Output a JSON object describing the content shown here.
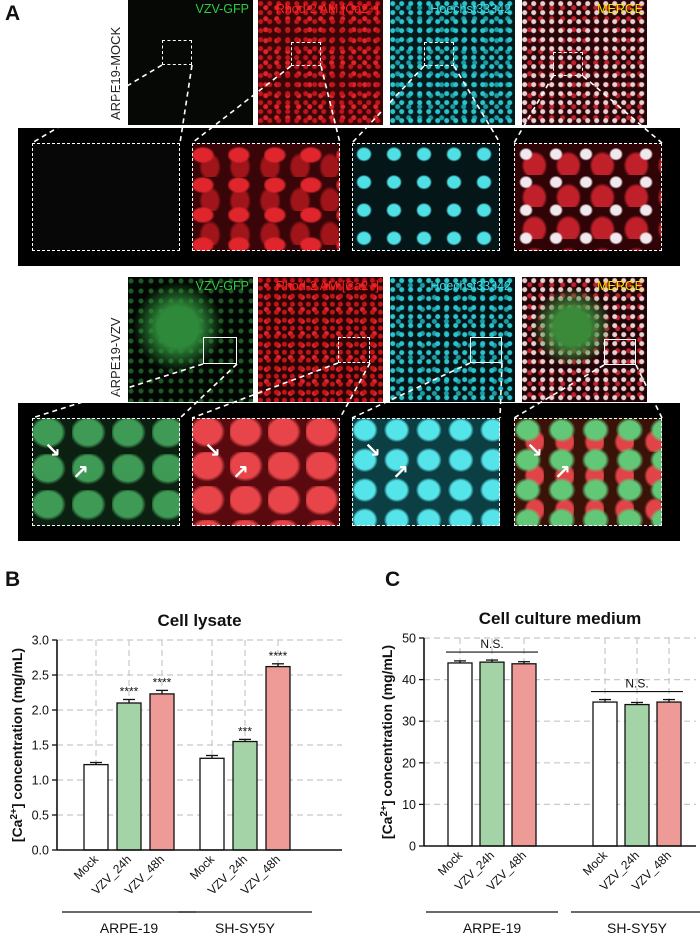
{
  "panel_a": {
    "letter": "A",
    "rows": [
      {
        "side_label": "ARPE19-MOCK",
        "tiles": [
          {
            "label": "VZV-GFP",
            "color": "#2ecc40",
            "bg": "#050805"
          },
          {
            "label": "Rhod-2 AM [Ca2+]",
            "color": "#ff2020",
            "bg": "radial-gradient(circle at 30% 40%, #c0161b 0 2px, transparent 3px) 0 0/9px 9px, radial-gradient(circle at 70% 70%, #e0252a 0 2px, transparent 3px) 0 0/11px 11px, #3a0507"
          },
          {
            "label": "Hoechst33342",
            "color": "#40d8e0",
            "bg": "radial-gradient(circle at 30% 40%, #2cc4cc 0 2px, transparent 3px) 0 0/9px 9px, radial-gradient(circle at 70% 70%, #1d9aa3 0 2px, transparent 3px) 0 0/11px 11px, #03191b"
          },
          {
            "label": "MERGE",
            "color": "#f5e600",
            "bg": "radial-gradient(circle at 30% 40%, #e8d0d4 0 2px, transparent 3px) 0 0/9px 9px, radial-gradient(circle at 70% 70%, #c2202a 0 2px, transparent 3px) 0 0/11px 11px, #2a0507"
          }
        ]
      },
      {
        "side_label": "ARPE19-VZV",
        "tiles": [
          {
            "label": "VZV-GFP",
            "color": "#2ecc40",
            "bg": "radial-gradient(ellipse at 40% 40%, #2e8a3a 0 20px, transparent 45px), radial-gradient(circle at 30% 40%, #1e5a24 0 2px, transparent 3px) 0 0/10px 10px, #030703"
          },
          {
            "label": "Rhod-2 AM [Ca2+]",
            "color": "#ff2020",
            "bg": "radial-gradient(circle at 30% 40%, #c0161b 0 2px, transparent 3px) 0 0/8px 8px, radial-gradient(circle at 70% 70%, #e0252a 0 2px, transparent 3px) 0 0/12px 12px, #2a0305"
          },
          {
            "label": "Hoechst33342",
            "color": "#40d8e0",
            "bg": "radial-gradient(circle at 30% 40%, #2cc4cc 0 2px, transparent 3px) 0 0/9px 9px, radial-gradient(circle at 70% 70%, #1d9aa3 0 2px, transparent 3px) 0 0/12px 12px, #021416"
          },
          {
            "label": "MERGE",
            "color": "#f5e600",
            "bg": "radial-gradient(ellipse at 40% 40%, #3a8a3a 0 18px, transparent 40px), radial-gradient(circle at 30% 40%, #e8d0d4 0 2px, transparent 3px) 0 0/9px 9px, radial-gradient(circle at 70% 70%, #c2202a 0 2px, transparent 3px) 0 0/11px 11px, #220406"
          }
        ]
      }
    ],
    "zoom_rows": [
      [
        "#070707",
        "radial-gradient(ellipse at 30% 40%, #e0262c 0 9px, transparent 12px) 0 0/36px 30px, radial-gradient(ellipse at 60% 70%, #a0151a 0 8px, transparent 11px) 0 0/30px 34px, #3a0508",
        "radial-gradient(ellipse at 40% 40%, #4fe0e6 0 6px, transparent 8px) 0 0/30px 28px, #041618",
        "radial-gradient(ellipse at 40% 40%, #f0e8ec 0 5px, transparent 7px) 0 0/30px 28px, radial-gradient(ellipse at 60% 70%, #c0202a 0 10px, transparent 13px) 0 0/34px 32px, #300407"
      ],
      [
        "radial-gradient(ellipse at 40% 40%, #3f9a55 0 14px, transparent 18px) 0 0/40px 36px, #0b2010",
        "radial-gradient(ellipse at 40% 40%, #e8454a 0 14px, transparent 18px) 0 0/38px 34px, #5a0a0e",
        "radial-gradient(ellipse at 40% 40%, #54e4ea 0 10px, transparent 13px) 0 0/32px 30px, #0c3f44",
        "radial-gradient(ellipse at 40% 40%, #62c878 0 10px, transparent 14px) 0 0/34px 30px, radial-gradient(ellipse at 70% 70%, #e04448 0 8px, transparent 11px) 0 0/30px 34px, #3a1208"
      ]
    ]
  },
  "chart_data": [
    {
      "panel_letter": "B",
      "type": "bar",
      "title": "Cell lysate",
      "ylabel": "[Ca2+] concentration (mg/mL)",
      "ylabel_main": "[Ca",
      "ylabel_sup": "2+",
      "ylabel_rest": "] concentration (mg/mL)",
      "ylim": [
        0,
        3.0
      ],
      "yticks": [
        "0.0",
        "0.5",
        "1.0",
        "1.5",
        "2.0",
        "2.5",
        "3.0"
      ],
      "grid": true,
      "groups": [
        {
          "name": "ARPE-19",
          "bars": [
            {
              "label": "Mock",
              "value": 1.22,
              "error": 0.03,
              "sig": "",
              "color": "#ffffff"
            },
            {
              "label": "VZV_24h",
              "value": 2.1,
              "error": 0.05,
              "sig": "****",
              "color": "#a3d3a6"
            },
            {
              "label": "VZV_48h",
              "value": 2.23,
              "error": 0.05,
              "sig": "****",
              "color": "#ee9a96"
            }
          ]
        },
        {
          "name": "SH-SY5Y",
          "bars": [
            {
              "label": "Mock",
              "value": 1.31,
              "error": 0.04,
              "sig": "",
              "color": "#ffffff"
            },
            {
              "label": "VZV_24h",
              "value": 1.55,
              "error": 0.03,
              "sig": "***",
              "color": "#a3d3a6"
            },
            {
              "label": "VZV_48h",
              "value": 2.62,
              "error": 0.04,
              "sig": "****",
              "color": "#ee9a96"
            }
          ]
        }
      ]
    },
    {
      "panel_letter": "C",
      "type": "bar",
      "title": "Cell culture medium",
      "ylabel": "[Ca2+] concentration (mg/mL)",
      "ylabel_main": "[Ca",
      "ylabel_sup": "2+",
      "ylabel_rest": "] concentration (mg/mL)",
      "ylim": [
        0,
        50
      ],
      "yticks": [
        "0",
        "10",
        "20",
        "30",
        "40",
        "50"
      ],
      "grid": true,
      "groups": [
        {
          "name": "ARPE-19",
          "sig_bracket": "N.S.",
          "bars": [
            {
              "label": "Mock",
              "value": 44.0,
              "error": 0.5,
              "color": "#ffffff"
            },
            {
              "label": "VZV_24h",
              "value": 44.2,
              "error": 0.5,
              "color": "#a3d3a6"
            },
            {
              "label": "VZV_48h",
              "value": 43.8,
              "error": 0.5,
              "color": "#ee9a96"
            }
          ]
        },
        {
          "name": "SH-SY5Y",
          "sig_bracket": "N.S.",
          "bars": [
            {
              "label": "Mock",
              "value": 34.6,
              "error": 0.6,
              "color": "#ffffff"
            },
            {
              "label": "VZV_24h",
              "value": 34.0,
              "error": 0.5,
              "color": "#a3d3a6"
            },
            {
              "label": "VZV_48h",
              "value": 34.6,
              "error": 0.6,
              "color": "#ee9a96"
            }
          ]
        }
      ]
    }
  ]
}
